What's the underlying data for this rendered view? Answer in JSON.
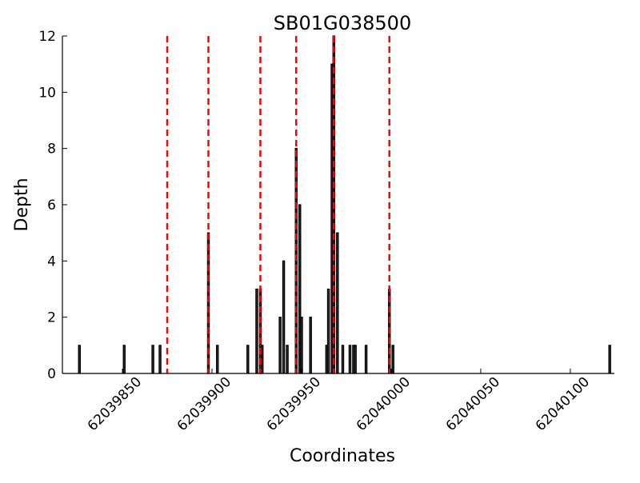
{
  "chart_data": {
    "type": "bar",
    "title": "SB01G038500",
    "xlabel": "Coordinates",
    "ylabel": "Depth",
    "xlim": [
      62039816.5,
      62040124.6
    ],
    "ylim": [
      0,
      12
    ],
    "xticks": [
      62039850,
      62039900,
      62039950,
      62040000,
      62040050,
      62040100
    ],
    "yticks": [
      0,
      2,
      4,
      6,
      8,
      10,
      12
    ],
    "bar_color": "#333333",
    "line_color": "#ff0000",
    "grid": false,
    "bars": [
      {
        "x": 62039826,
        "y": 1
      },
      {
        "x": 62039851,
        "y": 1
      },
      {
        "x": 62039867,
        "y": 1
      },
      {
        "x": 62039871,
        "y": 1
      },
      {
        "x": 62039898,
        "y": 5
      },
      {
        "x": 62039903,
        "y": 1
      },
      {
        "x": 62039920,
        "y": 1
      },
      {
        "x": 62039925,
        "y": 3
      },
      {
        "x": 62039927,
        "y": 3
      },
      {
        "x": 62039928,
        "y": 1
      },
      {
        "x": 62039938,
        "y": 2
      },
      {
        "x": 62039940,
        "y": 4
      },
      {
        "x": 62039942,
        "y": 1
      },
      {
        "x": 62039947,
        "y": 8
      },
      {
        "x": 62039949,
        "y": 6
      },
      {
        "x": 62039950,
        "y": 2
      },
      {
        "x": 62039955,
        "y": 2
      },
      {
        "x": 62039964,
        "y": 1
      },
      {
        "x": 62039965,
        "y": 3
      },
      {
        "x": 62039967,
        "y": 11
      },
      {
        "x": 62039968,
        "y": 12
      },
      {
        "x": 62039970,
        "y": 5
      },
      {
        "x": 62039973,
        "y": 1
      },
      {
        "x": 62039977,
        "y": 1
      },
      {
        "x": 62039979,
        "y": 1
      },
      {
        "x": 62039980,
        "y": 1
      },
      {
        "x": 62039986,
        "y": 1
      },
      {
        "x": 62039999,
        "y": 3
      },
      {
        "x": 62040001,
        "y": 1
      },
      {
        "x": 62040122,
        "y": 1
      }
    ],
    "vlines": [
      62039875,
      62039898,
      62039927,
      62039947,
      62039968,
      62039999
    ]
  }
}
